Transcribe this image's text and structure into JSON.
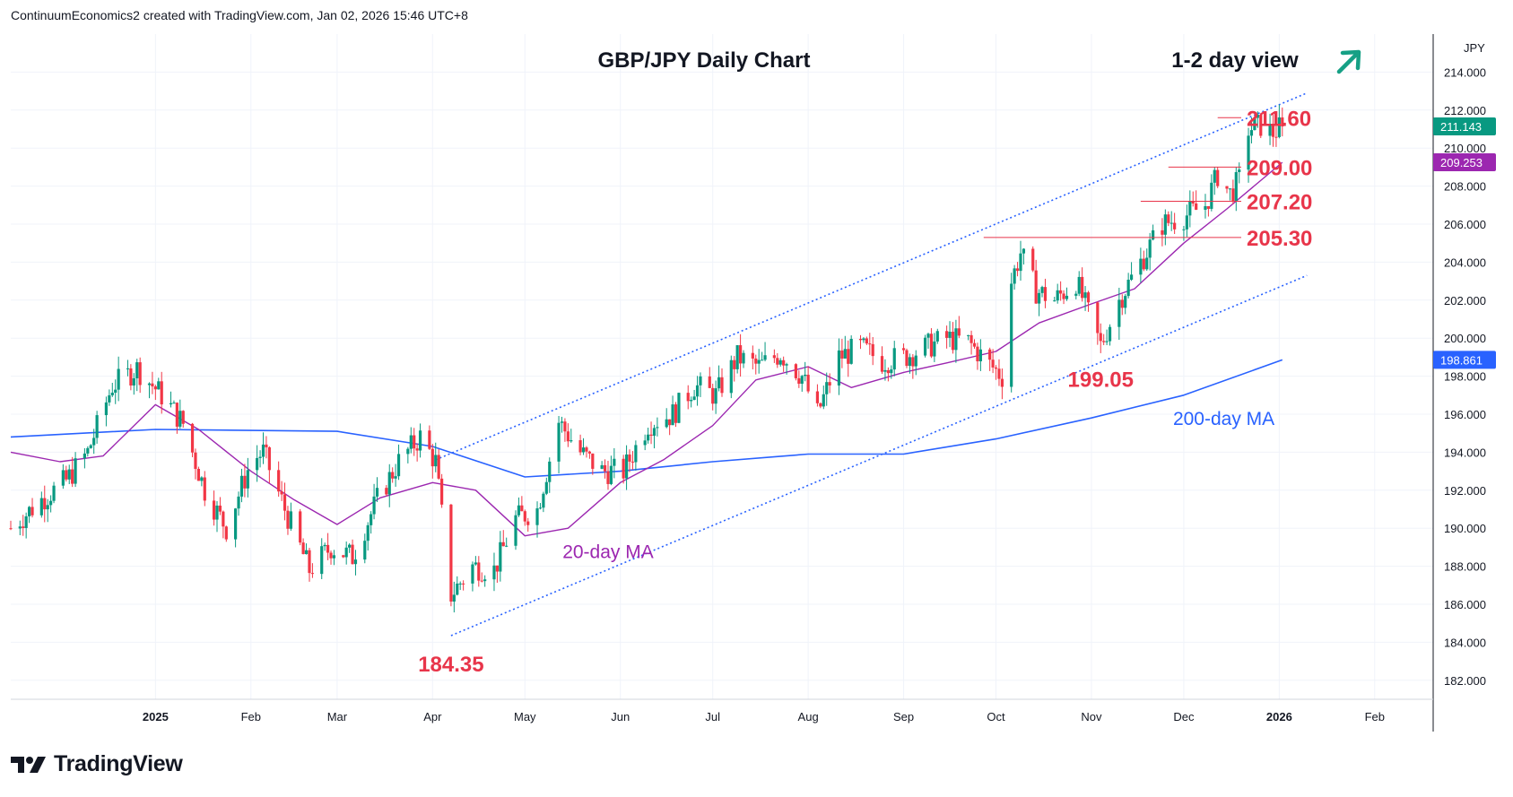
{
  "header": {
    "attribution": "ContinuumEconomics2 created with TradingView.com, Jan 02, 2026 15:46 UTC+8"
  },
  "footer": {
    "brand": "TradingView",
    "logo_icon": "tradingview-logo-icon"
  },
  "colors": {
    "up": "#089981",
    "down": "#f23645",
    "ma20": "#9c27b0",
    "ma200": "#2962ff",
    "level": "#e8354a",
    "channel": "#2962ff",
    "arrow": "#16a085",
    "grid": "#f0f3fa",
    "text": "#131722"
  },
  "chart_data": {
    "type": "candlestick",
    "title": "GBP/JPY Daily Chart",
    "view_label": "1-2 day view",
    "view_direction": "up-arrow-icon",
    "currency": "JPY",
    "x_axis": {
      "ticks": [
        "2025",
        "Feb",
        "Mar",
        "Apr",
        "May",
        "Jun",
        "Jul",
        "Aug",
        "Sep",
        "Oct",
        "Nov",
        "Dec",
        "2026",
        "Feb"
      ],
      "range": [
        "2024-11-15",
        "2026-02-20"
      ]
    },
    "y_axis": {
      "ticks": [
        "182.000",
        "184.000",
        "186.000",
        "188.000",
        "190.000",
        "192.000",
        "194.000",
        "196.000",
        "198.000",
        "200.000",
        "202.000",
        "204.000",
        "206.000",
        "208.000",
        "210.000",
        "212.000",
        "214.000"
      ],
      "range": [
        181,
        216
      ]
    },
    "price_badges": [
      {
        "label": "211.143",
        "value": 211.143,
        "color": "#089981"
      },
      {
        "label": "209.253",
        "value": 209.253,
        "color": "#9c27b0"
      },
      {
        "label": "198.861",
        "value": 198.861,
        "color": "#2962ff"
      }
    ],
    "levels": [
      {
        "label": "211.60",
        "value": 211.6,
        "start": "2025-12-12"
      },
      {
        "label": "209.00",
        "value": 209.0,
        "start": "2025-11-26"
      },
      {
        "label": "207.20",
        "value": 207.2,
        "start": "2025-11-17"
      },
      {
        "label": "205.30",
        "value": 205.3,
        "start": "2025-09-27"
      }
    ],
    "annotations": [
      {
        "label": "184.35",
        "date": "2025-04-07",
        "value": 184.35
      },
      {
        "label": "199.05",
        "date": "2025-11-04",
        "value": 199.05
      },
      {
        "label": "20-day MA",
        "date": "2025-05-28",
        "value": 188.9
      },
      {
        "label": "200-day MA",
        "date": "2025-12-14",
        "value": 195.9
      }
    ],
    "channel": {
      "upper": {
        "from": [
          "2025-04-02",
          193.6
        ],
        "to": [
          "2026-01-10",
          212.9
        ]
      },
      "lower": {
        "from": [
          "2025-04-07",
          184.35
        ],
        "to": [
          "2026-01-10",
          203.3
        ]
      }
    },
    "ma20": [
      [
        "2024-11-15",
        194.0
      ],
      [
        "2024-12-01",
        193.5
      ],
      [
        "2024-12-15",
        193.8
      ],
      [
        "2025-01-01",
        196.5
      ],
      [
        "2025-01-15",
        195.2
      ],
      [
        "2025-02-01",
        193.0
      ],
      [
        "2025-02-15",
        191.5
      ],
      [
        "2025-03-01",
        190.2
      ],
      [
        "2025-03-15",
        191.6
      ],
      [
        "2025-04-01",
        192.4
      ],
      [
        "2025-04-15",
        192.0
      ],
      [
        "2025-05-01",
        189.6
      ],
      [
        "2025-05-15",
        190.0
      ],
      [
        "2025-06-01",
        192.4
      ],
      [
        "2025-06-15",
        193.6
      ],
      [
        "2025-07-01",
        195.4
      ],
      [
        "2025-07-15",
        197.8
      ],
      [
        "2025-08-01",
        198.5
      ],
      [
        "2025-08-15",
        197.4
      ],
      [
        "2025-09-01",
        198.2
      ],
      [
        "2025-09-15",
        198.7
      ],
      [
        "2025-10-01",
        199.3
      ],
      [
        "2025-10-15",
        200.8
      ],
      [
        "2025-11-01",
        201.8
      ],
      [
        "2025-11-15",
        202.6
      ],
      [
        "2025-12-01",
        205.0
      ],
      [
        "2025-12-15",
        206.8
      ],
      [
        "2026-01-02",
        209.25
      ]
    ],
    "ma200": [
      [
        "2024-11-15",
        194.8
      ],
      [
        "2025-01-01",
        195.2
      ],
      [
        "2025-03-01",
        195.1
      ],
      [
        "2025-04-01",
        194.3
      ],
      [
        "2025-05-01",
        192.7
      ],
      [
        "2025-06-01",
        193.0
      ],
      [
        "2025-07-01",
        193.5
      ],
      [
        "2025-08-01",
        193.9
      ],
      [
        "2025-09-01",
        193.9
      ],
      [
        "2025-10-01",
        194.7
      ],
      [
        "2025-11-01",
        195.8
      ],
      [
        "2025-12-01",
        197.0
      ],
      [
        "2026-01-02",
        198.86
      ]
    ],
    "price_path": [
      [
        "2024-11-15",
        190.0
      ],
      [
        "2024-11-25",
        191.5
      ],
      [
        "2024-12-03",
        192.5
      ],
      [
        "2024-12-10",
        194.0
      ],
      [
        "2024-12-18",
        197.5
      ],
      [
        "2024-12-26",
        198.4
      ],
      [
        "2025-01-03",
        197.0
      ],
      [
        "2025-01-10",
        195.5
      ],
      [
        "2025-01-17",
        192.0
      ],
      [
        "2025-01-24",
        190.0
      ],
      [
        "2025-02-01",
        193.5
      ],
      [
        "2025-02-05",
        194.0
      ],
      [
        "2025-02-12",
        191.0
      ],
      [
        "2025-02-20",
        187.8
      ],
      [
        "2025-02-27",
        189.0
      ],
      [
        "2025-03-06",
        188.5
      ],
      [
        "2025-03-14",
        191.5
      ],
      [
        "2025-03-21",
        193.5
      ],
      [
        "2025-03-28",
        194.8
      ],
      [
        "2025-04-02",
        193.5
      ],
      [
        "2025-04-07",
        186.5
      ],
      [
        "2025-04-14",
        188.0
      ],
      [
        "2025-04-21",
        187.8
      ],
      [
        "2025-04-28",
        190.5
      ],
      [
        "2025-05-05",
        191.0
      ],
      [
        "2025-05-12",
        195.6
      ],
      [
        "2025-05-19",
        194.0
      ],
      [
        "2025-05-26",
        193.0
      ],
      [
        "2025-06-02",
        193.0
      ],
      [
        "2025-06-10",
        195.5
      ],
      [
        "2025-06-18",
        196.0
      ],
      [
        "2025-06-25",
        197.5
      ],
      [
        "2025-07-02",
        197.0
      ],
      [
        "2025-07-09",
        199.0
      ],
      [
        "2025-07-16",
        198.5
      ],
      [
        "2025-07-23",
        199.2
      ],
      [
        "2025-07-30",
        198.0
      ],
      [
        "2025-08-04",
        196.0
      ],
      [
        "2025-08-11",
        199.0
      ],
      [
        "2025-08-18",
        199.5
      ],
      [
        "2025-08-25",
        198.8
      ],
      [
        "2025-09-01",
        199.0
      ],
      [
        "2025-09-08",
        199.5
      ],
      [
        "2025-09-15",
        200.0
      ],
      [
        "2025-09-22",
        199.8
      ],
      [
        "2025-09-29",
        198.6
      ],
      [
        "2025-10-03",
        198.0
      ],
      [
        "2025-10-06",
        203.0
      ],
      [
        "2025-10-09",
        204.5
      ],
      [
        "2025-10-14",
        202.5
      ],
      [
        "2025-10-20",
        202.0
      ],
      [
        "2025-10-27",
        203.0
      ],
      [
        "2025-11-04",
        199.6
      ],
      [
        "2025-11-10",
        202.0
      ],
      [
        "2025-11-17",
        204.0
      ],
      [
        "2025-11-24",
        206.0
      ],
      [
        "2025-12-01",
        206.4
      ],
      [
        "2025-12-08",
        207.0
      ],
      [
        "2025-12-12",
        208.6
      ],
      [
        "2025-12-16",
        207.6
      ],
      [
        "2025-12-19",
        208.3
      ],
      [
        "2025-12-22",
        211.0
      ],
      [
        "2025-12-26",
        211.2
      ],
      [
        "2025-12-30",
        210.8
      ],
      [
        "2026-01-02",
        211.14
      ]
    ]
  }
}
